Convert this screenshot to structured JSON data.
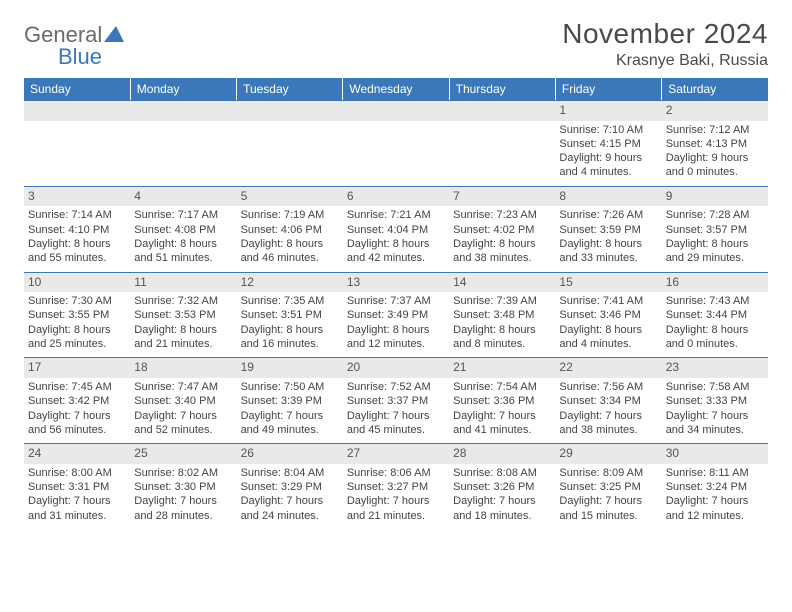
{
  "logo": {
    "general": "General",
    "blue": "Blue"
  },
  "header": {
    "month_title": "November 2024",
    "location": "Krasnye Baki, Russia"
  },
  "colors": {
    "header_bg": "#3a78b9",
    "header_text": "#ffffff",
    "daynum_bg": "#e9e9e9",
    "border": "#3a78b9",
    "text": "#444444",
    "logo_grey": "#6b6b6b",
    "logo_blue": "#3a78b9"
  },
  "calendar": {
    "type": "table",
    "columns": [
      "Sunday",
      "Monday",
      "Tuesday",
      "Wednesday",
      "Thursday",
      "Friday",
      "Saturday"
    ],
    "weeks": [
      [
        {
          "day": "",
          "sunrise": "",
          "sunset": "",
          "daylight": ""
        },
        {
          "day": "",
          "sunrise": "",
          "sunset": "",
          "daylight": ""
        },
        {
          "day": "",
          "sunrise": "",
          "sunset": "",
          "daylight": ""
        },
        {
          "day": "",
          "sunrise": "",
          "sunset": "",
          "daylight": ""
        },
        {
          "day": "",
          "sunrise": "",
          "sunset": "",
          "daylight": ""
        },
        {
          "day": "1",
          "sunrise": "Sunrise: 7:10 AM",
          "sunset": "Sunset: 4:15 PM",
          "daylight": "Daylight: 9 hours and 4 minutes."
        },
        {
          "day": "2",
          "sunrise": "Sunrise: 7:12 AM",
          "sunset": "Sunset: 4:13 PM",
          "daylight": "Daylight: 9 hours and 0 minutes."
        }
      ],
      [
        {
          "day": "3",
          "sunrise": "Sunrise: 7:14 AM",
          "sunset": "Sunset: 4:10 PM",
          "daylight": "Daylight: 8 hours and 55 minutes."
        },
        {
          "day": "4",
          "sunrise": "Sunrise: 7:17 AM",
          "sunset": "Sunset: 4:08 PM",
          "daylight": "Daylight: 8 hours and 51 minutes."
        },
        {
          "day": "5",
          "sunrise": "Sunrise: 7:19 AM",
          "sunset": "Sunset: 4:06 PM",
          "daylight": "Daylight: 8 hours and 46 minutes."
        },
        {
          "day": "6",
          "sunrise": "Sunrise: 7:21 AM",
          "sunset": "Sunset: 4:04 PM",
          "daylight": "Daylight: 8 hours and 42 minutes."
        },
        {
          "day": "7",
          "sunrise": "Sunrise: 7:23 AM",
          "sunset": "Sunset: 4:02 PM",
          "daylight": "Daylight: 8 hours and 38 minutes."
        },
        {
          "day": "8",
          "sunrise": "Sunrise: 7:26 AM",
          "sunset": "Sunset: 3:59 PM",
          "daylight": "Daylight: 8 hours and 33 minutes."
        },
        {
          "day": "9",
          "sunrise": "Sunrise: 7:28 AM",
          "sunset": "Sunset: 3:57 PM",
          "daylight": "Daylight: 8 hours and 29 minutes."
        }
      ],
      [
        {
          "day": "10",
          "sunrise": "Sunrise: 7:30 AM",
          "sunset": "Sunset: 3:55 PM",
          "daylight": "Daylight: 8 hours and 25 minutes."
        },
        {
          "day": "11",
          "sunrise": "Sunrise: 7:32 AM",
          "sunset": "Sunset: 3:53 PM",
          "daylight": "Daylight: 8 hours and 21 minutes."
        },
        {
          "day": "12",
          "sunrise": "Sunrise: 7:35 AM",
          "sunset": "Sunset: 3:51 PM",
          "daylight": "Daylight: 8 hours and 16 minutes."
        },
        {
          "day": "13",
          "sunrise": "Sunrise: 7:37 AM",
          "sunset": "Sunset: 3:49 PM",
          "daylight": "Daylight: 8 hours and 12 minutes."
        },
        {
          "day": "14",
          "sunrise": "Sunrise: 7:39 AM",
          "sunset": "Sunset: 3:48 PM",
          "daylight": "Daylight: 8 hours and 8 minutes."
        },
        {
          "day": "15",
          "sunrise": "Sunrise: 7:41 AM",
          "sunset": "Sunset: 3:46 PM",
          "daylight": "Daylight: 8 hours and 4 minutes."
        },
        {
          "day": "16",
          "sunrise": "Sunrise: 7:43 AM",
          "sunset": "Sunset: 3:44 PM",
          "daylight": "Daylight: 8 hours and 0 minutes."
        }
      ],
      [
        {
          "day": "17",
          "sunrise": "Sunrise: 7:45 AM",
          "sunset": "Sunset: 3:42 PM",
          "daylight": "Daylight: 7 hours and 56 minutes."
        },
        {
          "day": "18",
          "sunrise": "Sunrise: 7:47 AM",
          "sunset": "Sunset: 3:40 PM",
          "daylight": "Daylight: 7 hours and 52 minutes."
        },
        {
          "day": "19",
          "sunrise": "Sunrise: 7:50 AM",
          "sunset": "Sunset: 3:39 PM",
          "daylight": "Daylight: 7 hours and 49 minutes."
        },
        {
          "day": "20",
          "sunrise": "Sunrise: 7:52 AM",
          "sunset": "Sunset: 3:37 PM",
          "daylight": "Daylight: 7 hours and 45 minutes."
        },
        {
          "day": "21",
          "sunrise": "Sunrise: 7:54 AM",
          "sunset": "Sunset: 3:36 PM",
          "daylight": "Daylight: 7 hours and 41 minutes."
        },
        {
          "day": "22",
          "sunrise": "Sunrise: 7:56 AM",
          "sunset": "Sunset: 3:34 PM",
          "daylight": "Daylight: 7 hours and 38 minutes."
        },
        {
          "day": "23",
          "sunrise": "Sunrise: 7:58 AM",
          "sunset": "Sunset: 3:33 PM",
          "daylight": "Daylight: 7 hours and 34 minutes."
        }
      ],
      [
        {
          "day": "24",
          "sunrise": "Sunrise: 8:00 AM",
          "sunset": "Sunset: 3:31 PM",
          "daylight": "Daylight: 7 hours and 31 minutes."
        },
        {
          "day": "25",
          "sunrise": "Sunrise: 8:02 AM",
          "sunset": "Sunset: 3:30 PM",
          "daylight": "Daylight: 7 hours and 28 minutes."
        },
        {
          "day": "26",
          "sunrise": "Sunrise: 8:04 AM",
          "sunset": "Sunset: 3:29 PM",
          "daylight": "Daylight: 7 hours and 24 minutes."
        },
        {
          "day": "27",
          "sunrise": "Sunrise: 8:06 AM",
          "sunset": "Sunset: 3:27 PM",
          "daylight": "Daylight: 7 hours and 21 minutes."
        },
        {
          "day": "28",
          "sunrise": "Sunrise: 8:08 AM",
          "sunset": "Sunset: 3:26 PM",
          "daylight": "Daylight: 7 hours and 18 minutes."
        },
        {
          "day": "29",
          "sunrise": "Sunrise: 8:09 AM",
          "sunset": "Sunset: 3:25 PM",
          "daylight": "Daylight: 7 hours and 15 minutes."
        },
        {
          "day": "30",
          "sunrise": "Sunrise: 8:11 AM",
          "sunset": "Sunset: 3:24 PM",
          "daylight": "Daylight: 7 hours and 12 minutes."
        }
      ]
    ]
  }
}
